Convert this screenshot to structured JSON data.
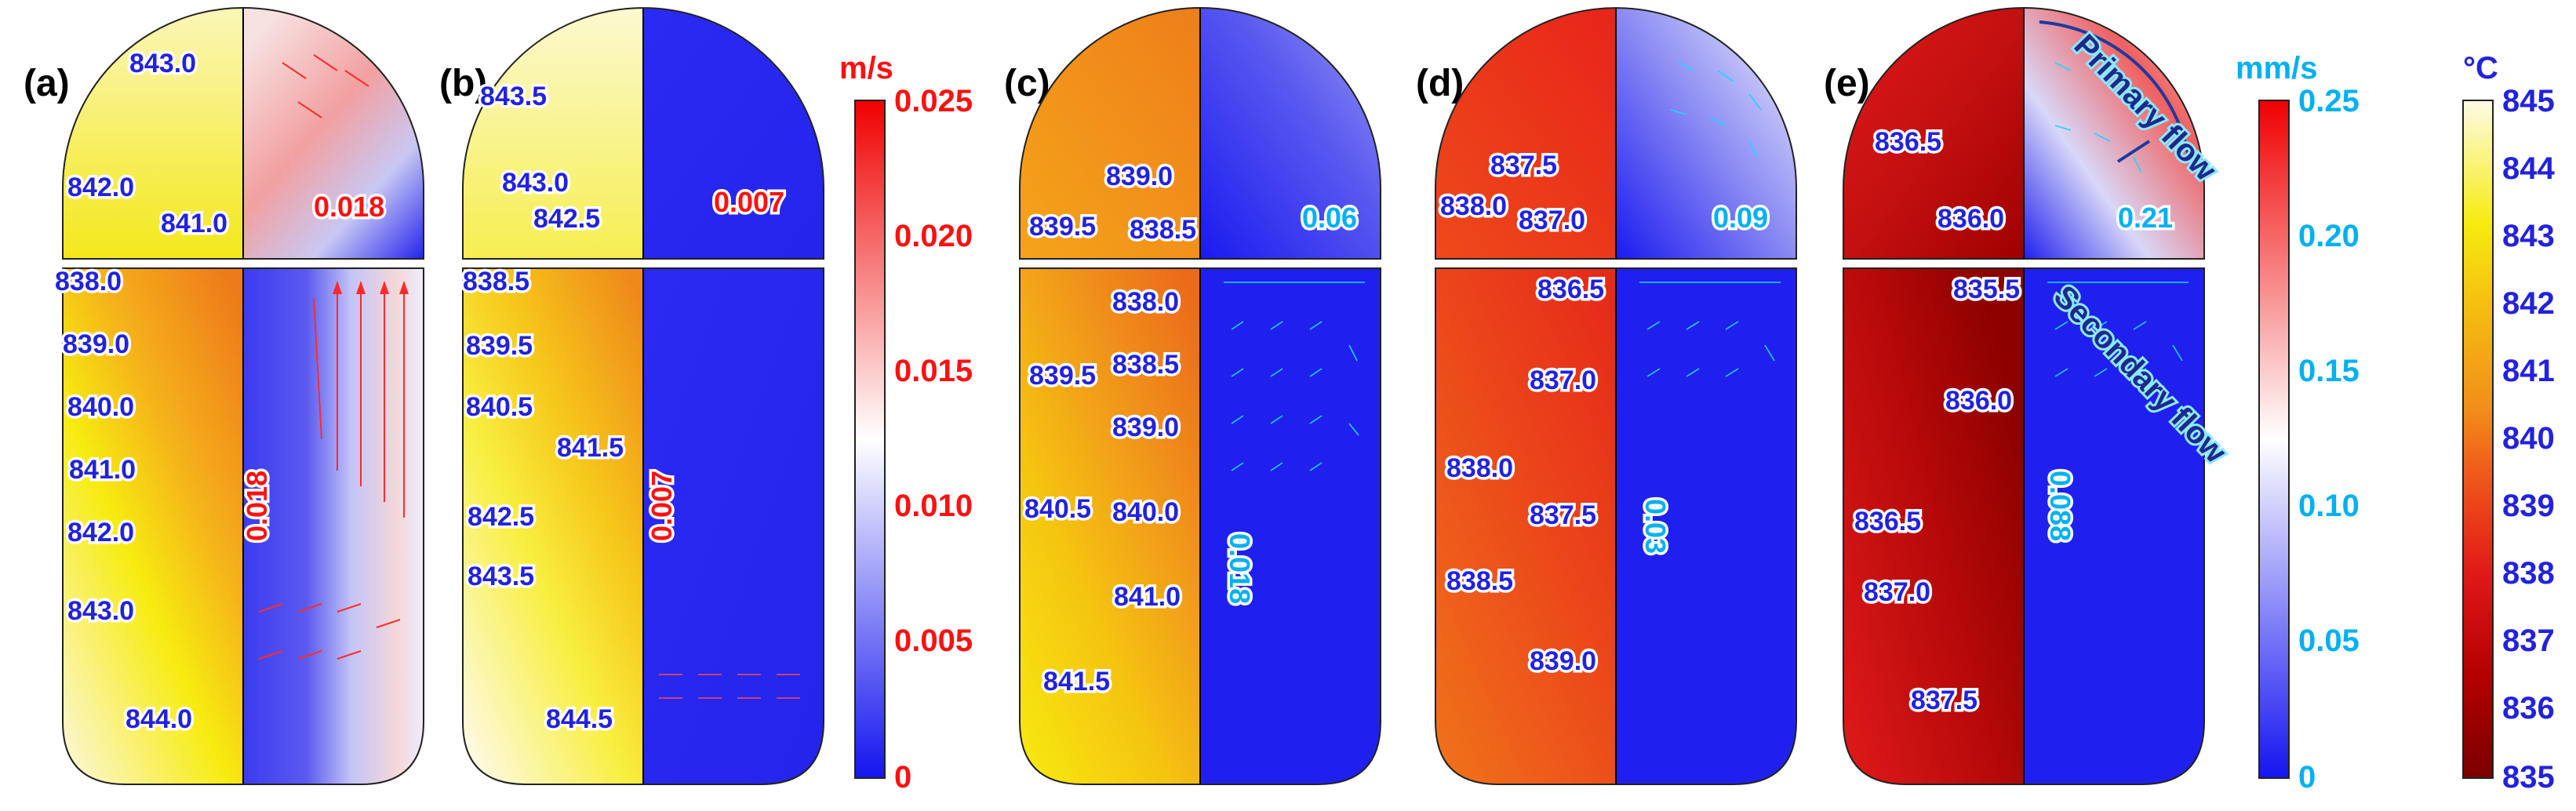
{
  "colors": {
    "velocity_low": "#1414f0",
    "velocity_mid": "#ffffff",
    "velocity_high": "#f00000",
    "temp_labels": "#2222dd",
    "red_text": "#ff1010",
    "cyan_text": "#00b0f0",
    "arrow_red": "#ff2a2a",
    "arrow_cyan": "#19d7ff"
  },
  "colorbars": {
    "ms": {
      "unit": "m/s",
      "ticks": [
        "0.025",
        "0.020",
        "0.015",
        "0.010",
        "0.005",
        "0"
      ]
    },
    "mms": {
      "unit": "mm/s",
      "ticks": [
        "0.25",
        "0.20",
        "0.15",
        "0.10",
        "0.05",
        "0"
      ]
    },
    "temp": {
      "unit": "°C",
      "ticks": [
        "845",
        "844",
        "843",
        "842",
        "841",
        "840",
        "839",
        "838",
        "837",
        "836",
        "835"
      ]
    }
  },
  "panels": [
    {
      "label": "(a)",
      "velocity_scale": "ms",
      "top_temps": [
        "843.0",
        "842.0",
        "841.0"
      ],
      "top_velocity": "0.018",
      "bottom_temps": [
        "838.0",
        "839.0",
        "840.0",
        "841.0",
        "842.0",
        "843.0",
        "844.0"
      ],
      "bottom_velocity": "0.018"
    },
    {
      "label": "(b)",
      "velocity_scale": "ms",
      "top_temps": [
        "843.5",
        "843.0",
        "842.5"
      ],
      "top_velocity": "0.007",
      "bottom_temps": [
        "838.5",
        "839.5",
        "840.5",
        "841.5",
        "842.5",
        "843.5",
        "844.5"
      ],
      "bottom_velocity": "0.007"
    },
    {
      "label": "(c)",
      "velocity_scale": "mms",
      "top_temps": [
        "839.0",
        "839.5",
        "838.5"
      ],
      "top_velocity": "0.06",
      "bottom_temps": [
        "838.0",
        "838.5",
        "839.5",
        "839.0",
        "840.0",
        "840.5",
        "841.0",
        "841.5"
      ],
      "bottom_velocity": "0.018"
    },
    {
      "label": "(d)",
      "velocity_scale": "mms",
      "top_temps": [
        "837.5",
        "838.0",
        "837.0"
      ],
      "top_velocity": "0.09",
      "bottom_temps": [
        "836.5",
        "837.0",
        "838.0",
        "837.5",
        "838.5",
        "839.0"
      ],
      "bottom_velocity": "0.03"
    },
    {
      "label": "(e)",
      "velocity_scale": "mms",
      "top_temps": [
        "836.5",
        "836.0"
      ],
      "top_velocity": "0.21",
      "bottom_temps": [
        "835.5",
        "836.0",
        "836.5",
        "837.0",
        "837.5"
      ],
      "bottom_velocity": "0.088"
    }
  ],
  "annotations": {
    "primary_flow": "Primary flow",
    "secondary_flow": "Secondary flow"
  }
}
